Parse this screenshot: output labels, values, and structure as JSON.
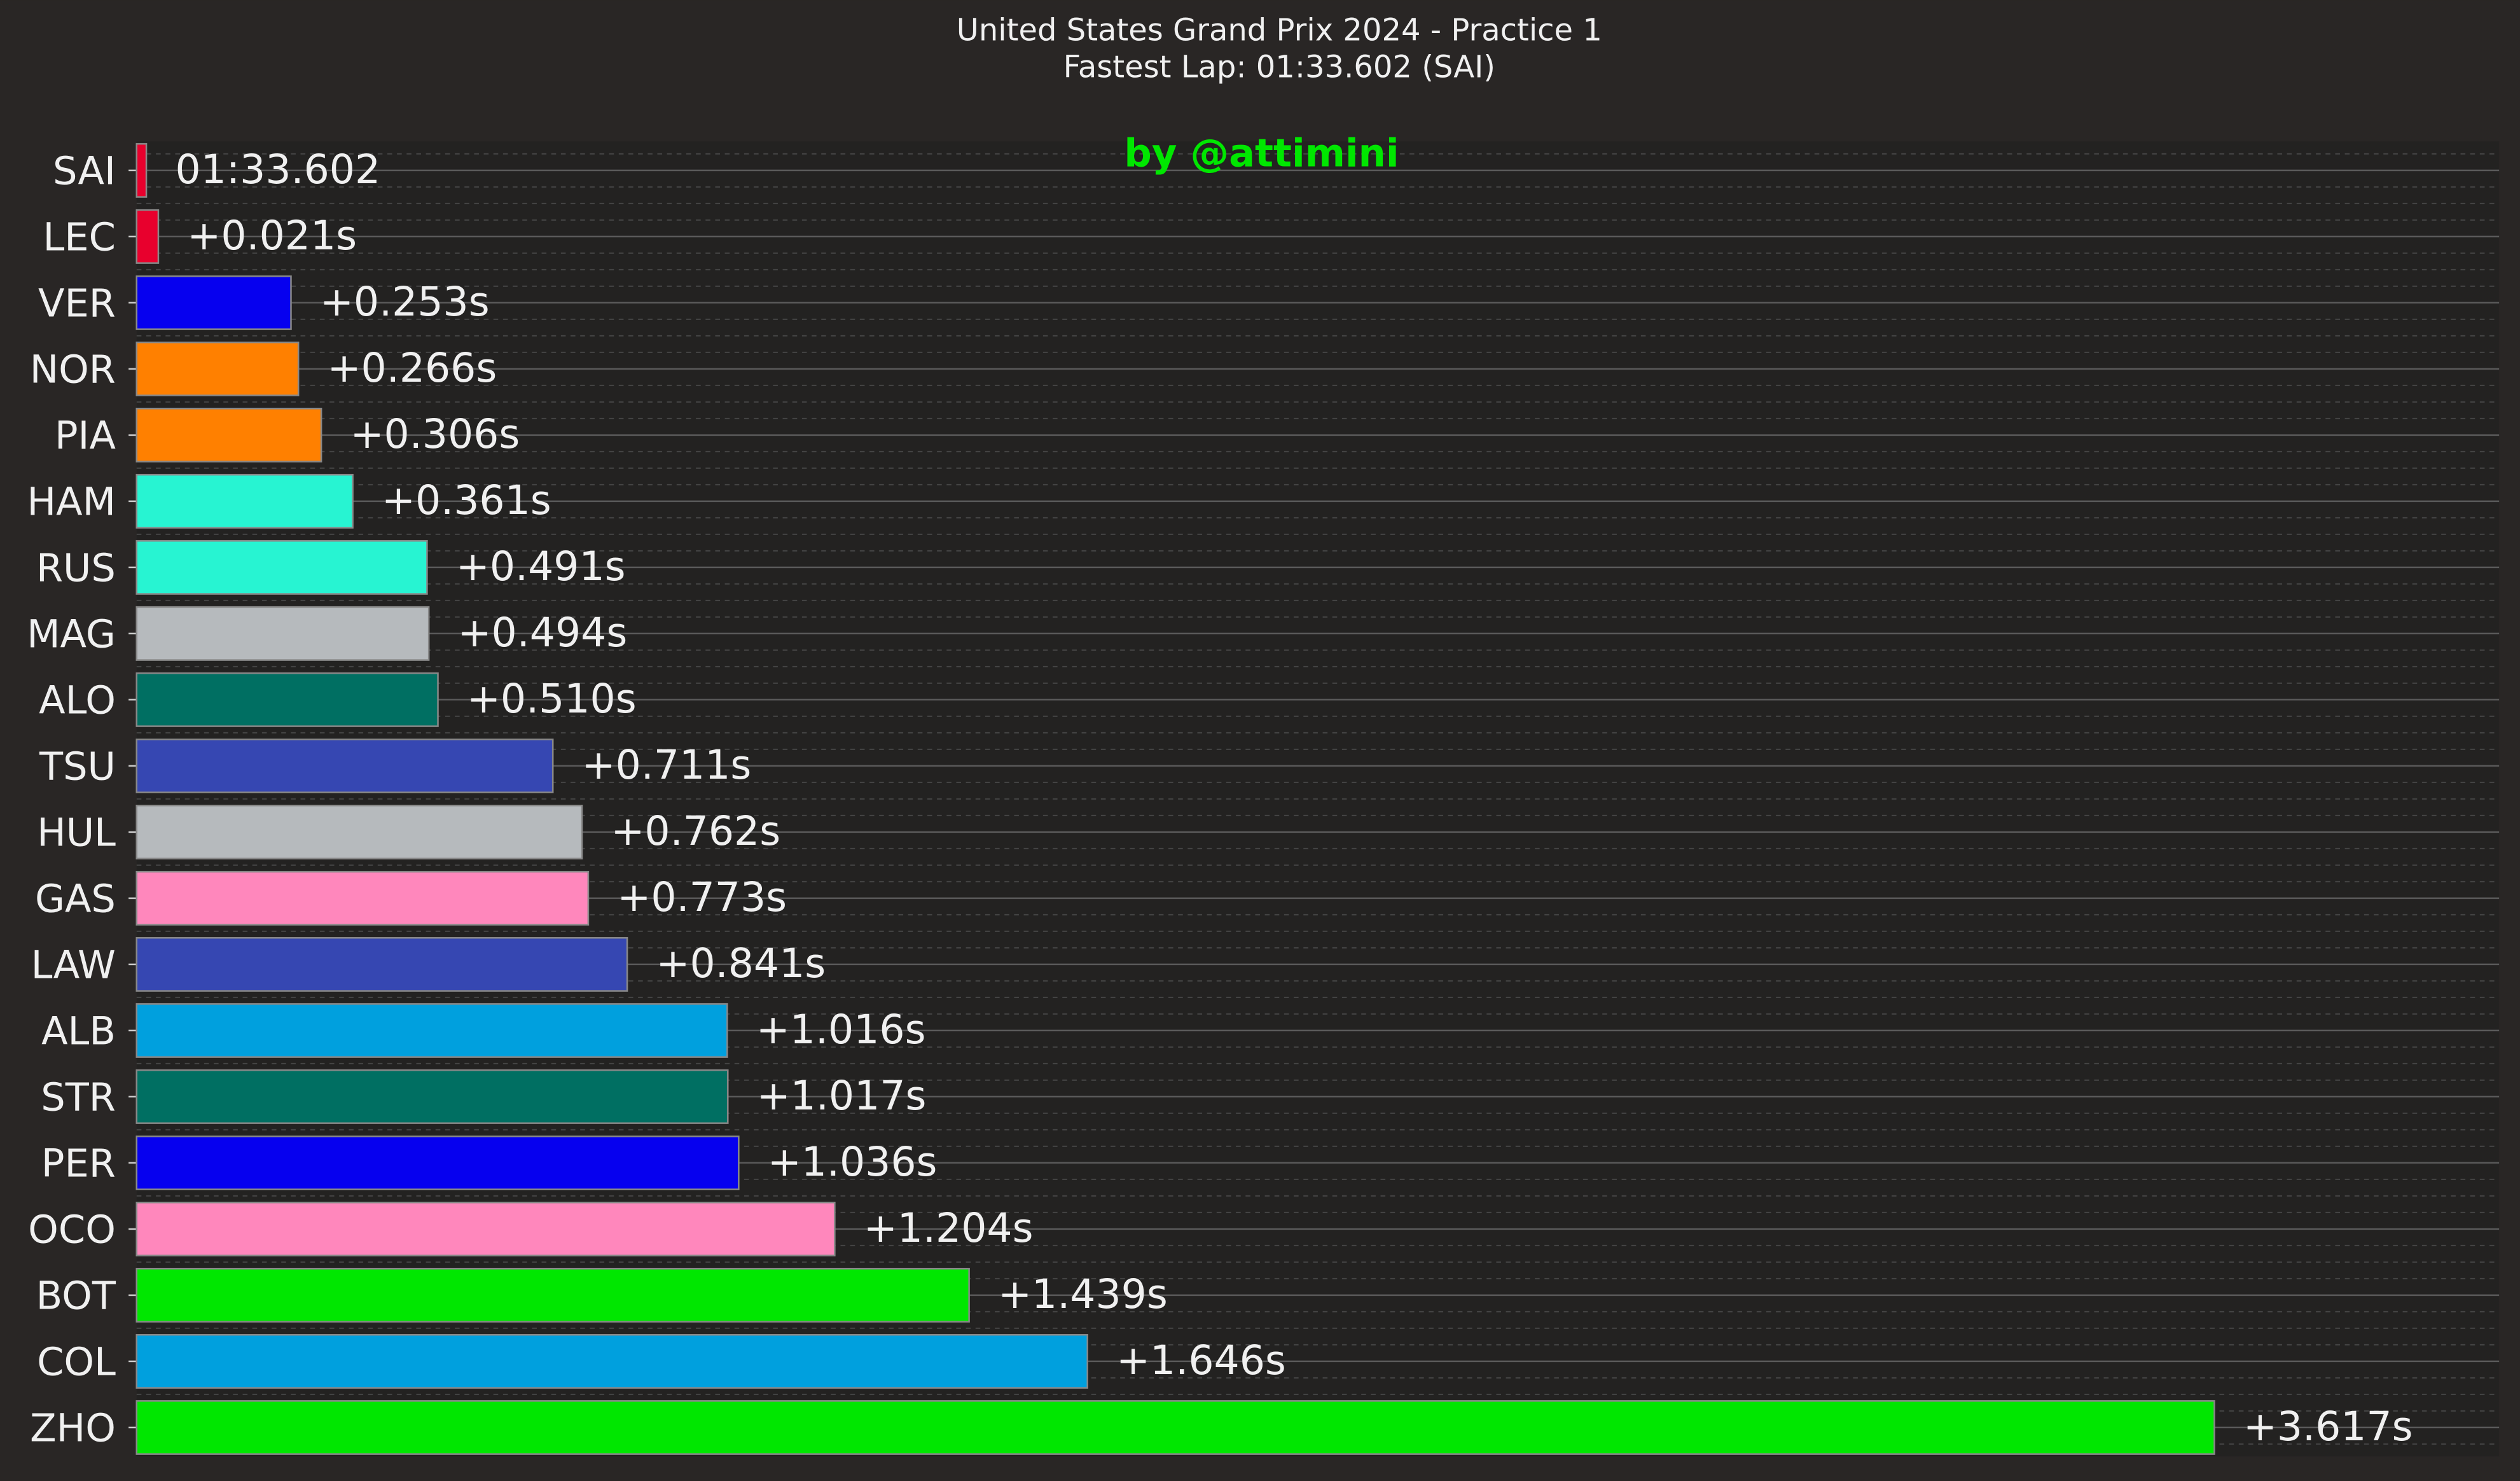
{
  "chart_data": {
    "type": "bar",
    "orientation": "horizontal",
    "title": "United States Grand Prix 2024 - Practice 1",
    "subtitle": "Fastest Lap: 01:33.602 (SAI)",
    "watermark": "by @attimini",
    "annotation": "01:33.602",
    "categories": [
      "SAI",
      "LEC",
      "VER",
      "NOR",
      "PIA",
      "HAM",
      "RUS",
      "MAG",
      "ALO",
      "TSU",
      "HUL",
      "GAS",
      "LAW",
      "ALB",
      "STR",
      "PER",
      "OCO",
      "BOT",
      "COL",
      "ZHO"
    ],
    "values": [
      0,
      0.021,
      0.253,
      0.266,
      0.306,
      0.361,
      0.491,
      0.494,
      0.51,
      0.711,
      0.762,
      0.773,
      0.841,
      1.016,
      1.017,
      1.036,
      1.204,
      1.439,
      1.646,
      3.617
    ],
    "value_labels": [
      null,
      "+0.021s",
      "+0.253s",
      "+0.266s",
      "+0.306s",
      "+0.361s",
      "+0.491s",
      "+0.494s",
      "+0.510s",
      "+0.711s",
      "+0.762s",
      "+0.773s",
      "+0.841s",
      "+1.016s",
      "+1.017s",
      "+1.036s",
      "+1.204s",
      "+1.439s",
      "+1.646s",
      "+3.617s"
    ],
    "colors": [
      "#e8002d",
      "#e8002d",
      "#0600ef",
      "#ff8000",
      "#ff8000",
      "#27f4d2",
      "#27f4d2",
      "#b6babd",
      "#006f62",
      "#3647b2",
      "#b6babd",
      "#ff87bc",
      "#3647b2",
      "#00a0de",
      "#006f62",
      "#0600ef",
      "#ff87bc",
      "#00e700",
      "#00a0de",
      "#00e700"
    ],
    "xlim": [
      -0.017,
      4.115
    ],
    "grid": true
  }
}
